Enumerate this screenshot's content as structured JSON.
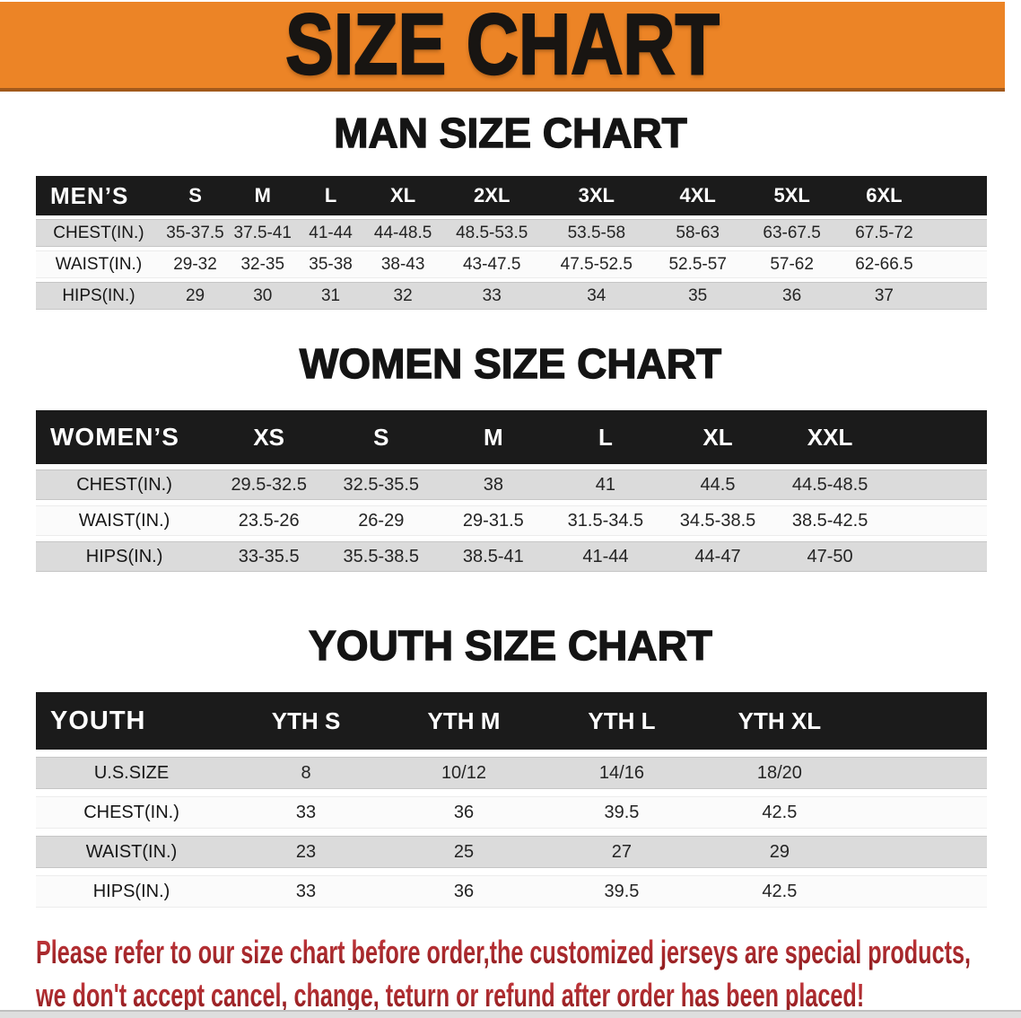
{
  "page": {
    "title": "SIZE CHART"
  },
  "colors": {
    "banner_bg": "#ec8426",
    "table_header_bg": "#1b1b1b",
    "alt_row_bg": "#dbdbdb",
    "disclaimer_text": "#a52a2c"
  },
  "sections": [
    {
      "heading": "MAN SIZE CHART",
      "table": {
        "name": "men",
        "corner": "MEN’S",
        "columns": [
          "S",
          "M",
          "L",
          "XL",
          "2XL",
          "3XL",
          "4XL",
          "5XL",
          "6XL"
        ],
        "rows": [
          {
            "label": "CHEST(IN.)",
            "values": [
              "35-37.5",
              "37.5-41",
              "41-44",
              "44-48.5",
              "48.5-53.5",
              "53.5-58",
              "58-63",
              "63-67.5",
              "67.5-72"
            ]
          },
          {
            "label": "WAIST(IN.)",
            "values": [
              "29-32",
              "32-35",
              "35-38",
              "38-43",
              "43-47.5",
              "47.5-52.5",
              "52.5-57",
              "57-62",
              "62-66.5"
            ]
          },
          {
            "label": "HIPS(IN.)",
            "values": [
              "29",
              "30",
              "31",
              "32",
              "33",
              "34",
              "35",
              "36",
              "37"
            ]
          }
        ]
      }
    },
    {
      "heading": "WOMEN SIZE CHART",
      "table": {
        "name": "women",
        "corner": "WOMEN’S",
        "columns": [
          "XS",
          "S",
          "M",
          "L",
          "XL",
          "XXL"
        ],
        "rows": [
          {
            "label": "CHEST(IN.)",
            "values": [
              "29.5-32.5",
              "32.5-35.5",
              "38",
              "41",
              "44.5",
              "44.5-48.5"
            ]
          },
          {
            "label": "WAIST(IN.)",
            "values": [
              "23.5-26",
              "26-29",
              "29-31.5",
              "31.5-34.5",
              "34.5-38.5",
              "38.5-42.5"
            ]
          },
          {
            "label": "HIPS(IN.)",
            "values": [
              "33-35.5",
              "35.5-38.5",
              "38.5-41",
              "41-44",
              "44-47",
              "47-50"
            ]
          }
        ]
      }
    },
    {
      "heading": "YOUTH SIZE CHART",
      "table": {
        "name": "youth",
        "corner": "YOUTH",
        "columns": [
          "YTH S",
          "YTH M",
          "YTH L",
          "YTH XL"
        ],
        "rows": [
          {
            "label": "U.S.SIZE",
            "values": [
              "8",
              "10/12",
              "14/16",
              "18/20"
            ]
          },
          {
            "label": "CHEST(IN.)",
            "values": [
              "33",
              "36",
              "39.5",
              "42.5"
            ]
          },
          {
            "label": "WAIST(IN.)",
            "values": [
              "23",
              "25",
              "27",
              "29"
            ]
          },
          {
            "label": "HIPS(IN.)",
            "values": [
              "33",
              "36",
              "39.5",
              "42.5"
            ]
          }
        ]
      }
    }
  ],
  "disclaimer": {
    "lines": [
      "Please refer to our size chart before order,the customized jerseys are special products,",
      "we don't accept cancel, change, teturn or refund after order has been placed!"
    ]
  }
}
